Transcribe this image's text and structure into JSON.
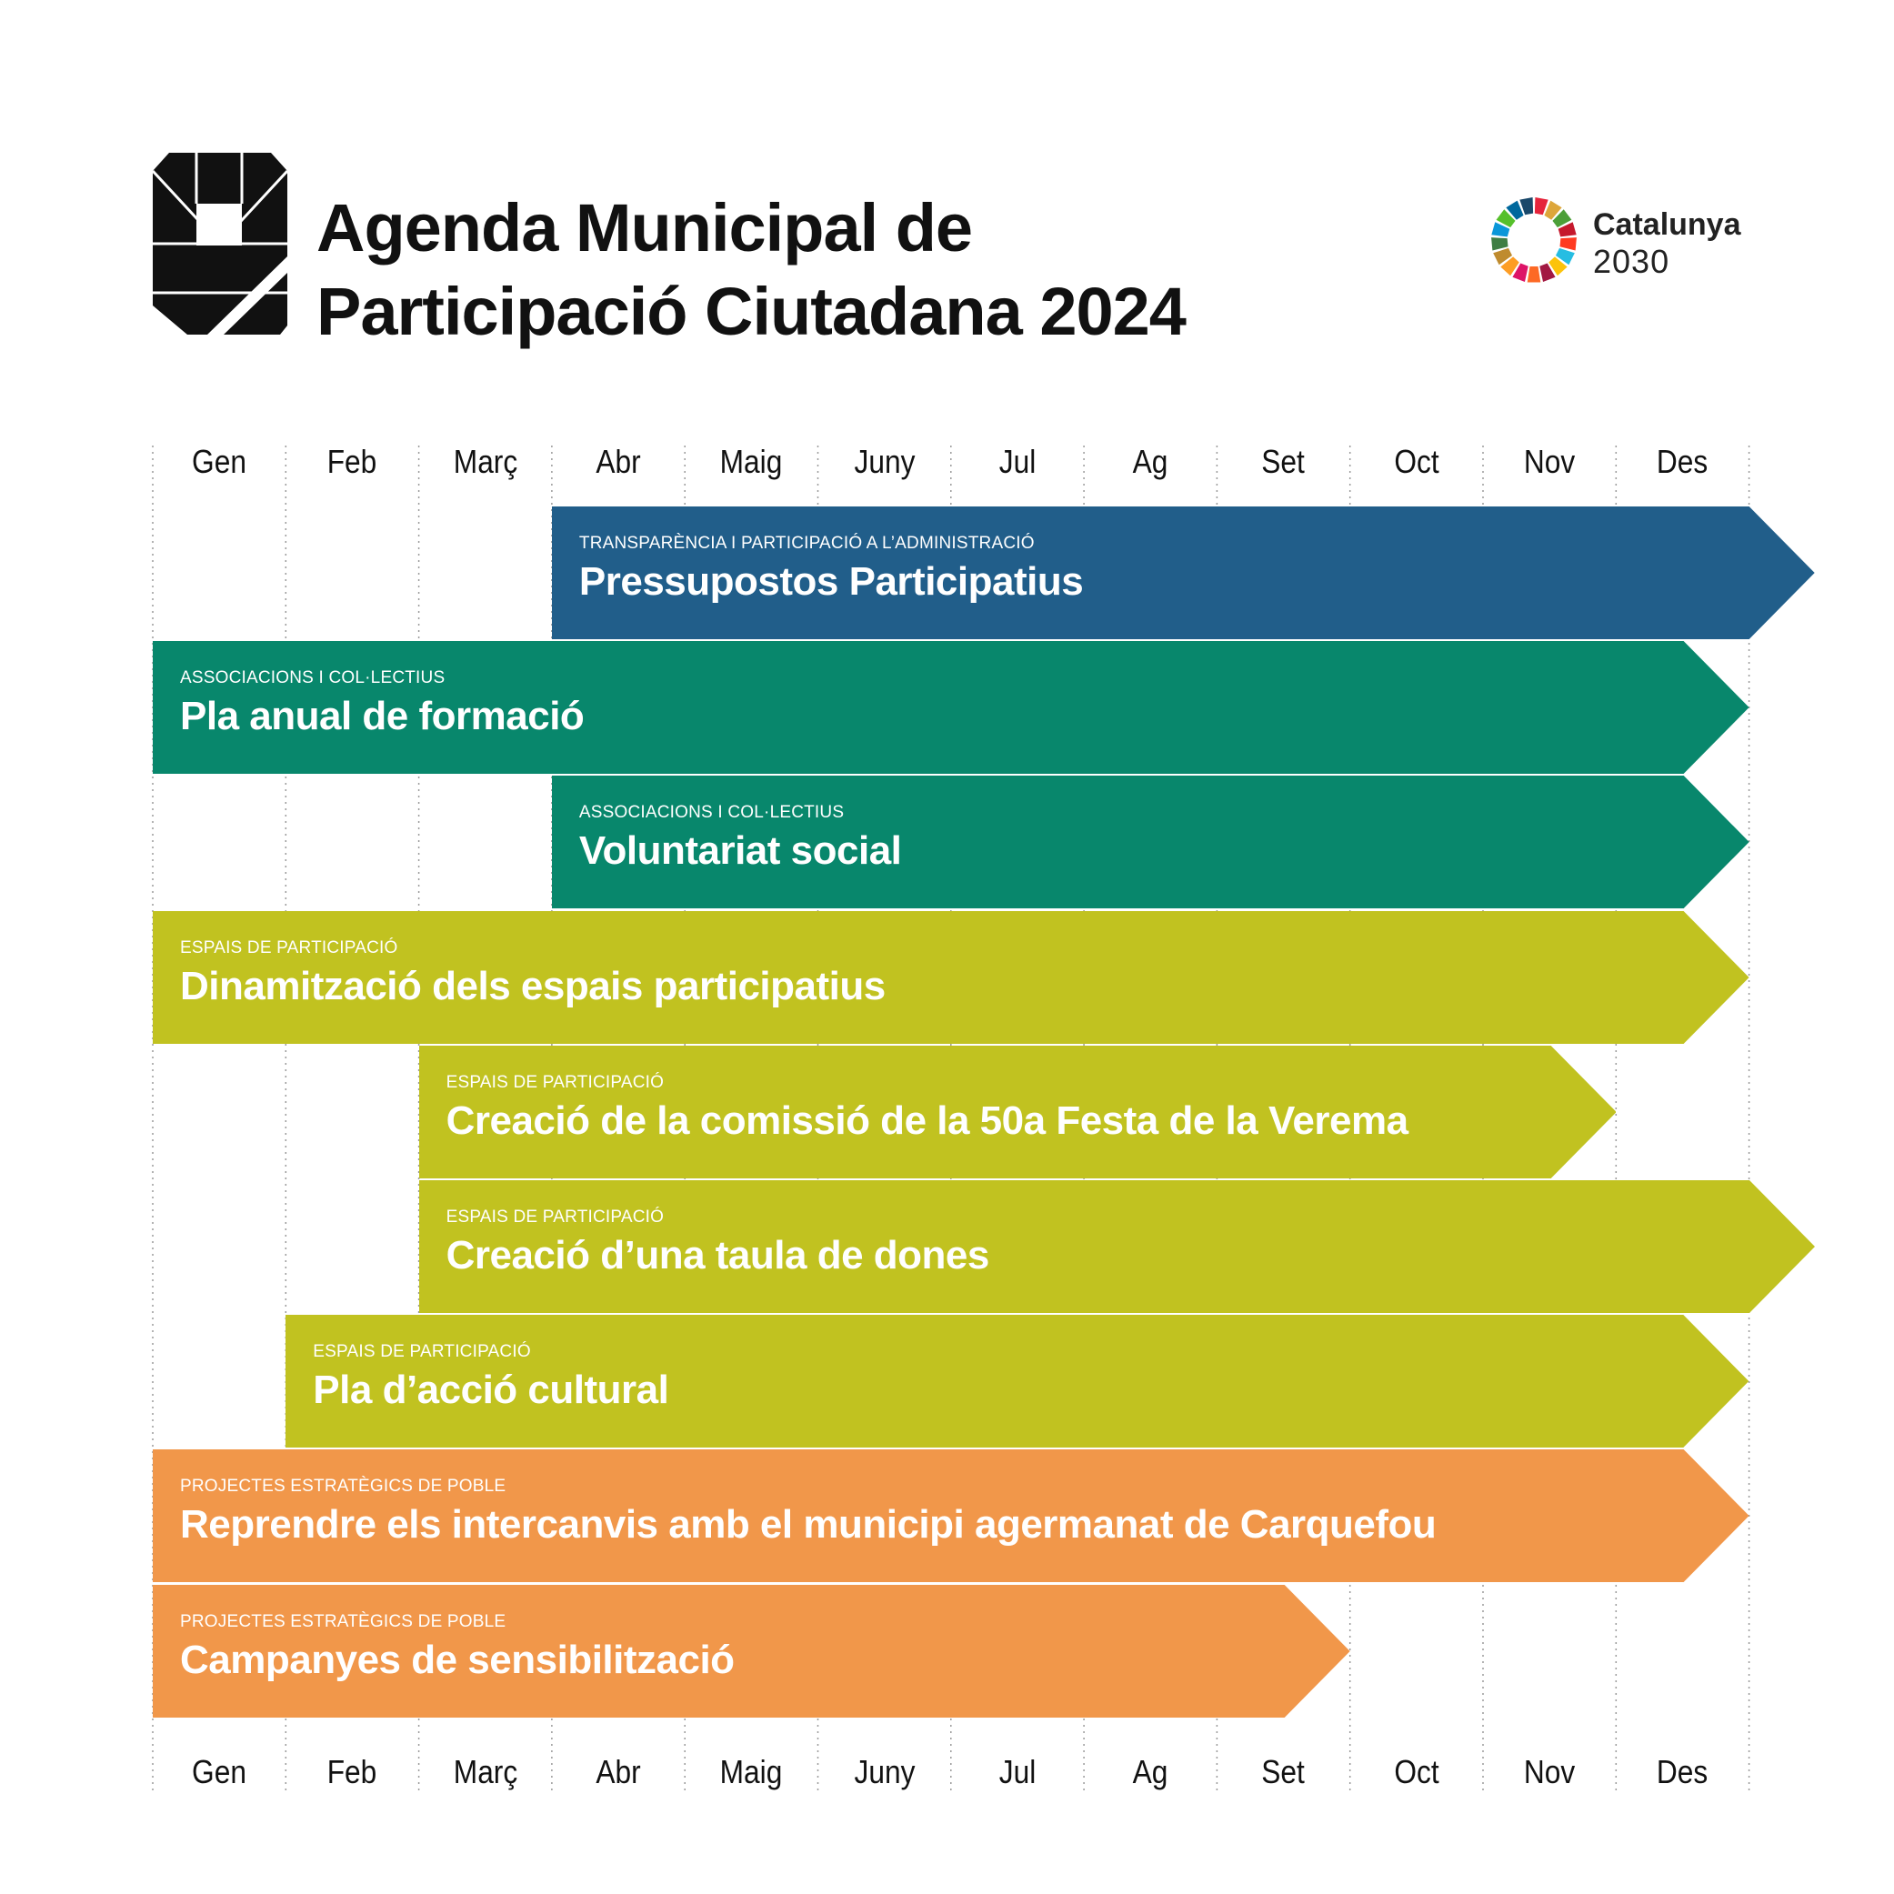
{
  "header": {
    "title_line1": "Agenda Municipal de",
    "title_line2": "Participació Ciutadana 2024"
  },
  "brand": {
    "name": "Catalunya",
    "year": "2030"
  },
  "colors": {
    "blue": "#215E8A",
    "teal": "#08876C",
    "olive": "#C1C220",
    "orange": "#F1974A",
    "grid_line": "#9a9a9a"
  },
  "months": [
    "Gen",
    "Feb",
    "Març",
    "Abr",
    "Maig",
    "Juny",
    "Jul",
    "Ag",
    "Set",
    "Oct",
    "Nov",
    "Des"
  ],
  "chart_data": {
    "type": "gantt",
    "axis": "months 2024",
    "tasks": [
      {
        "category": "TRANSPARÈNCIA I PARTICIPACIÓ A L’ADMINISTRACIÓ",
        "title": "Pressupostos Participatius",
        "start": "Abr",
        "end": "Des",
        "continues": true,
        "color": "blue"
      },
      {
        "category": "ASSOCIACIONS I COL·LECTIUS",
        "title": "Pla anual de formació",
        "start": "Gen",
        "end": "Des",
        "continues": false,
        "color": "teal"
      },
      {
        "category": "ASSOCIACIONS I COL·LECTIUS",
        "title": "Voluntariat social",
        "start": "Abr",
        "end": "Des",
        "continues": false,
        "color": "teal"
      },
      {
        "category": "ESPAIS DE PARTICIPACIÓ",
        "title": "Dinamització dels espais participatius",
        "start": "Gen",
        "end": "Des",
        "continues": false,
        "color": "olive"
      },
      {
        "category": "ESPAIS DE PARTICIPACIÓ",
        "title": "Creació de la comissió de la 50a Festa de la Verema",
        "start": "Març",
        "end": "Nov",
        "continues": false,
        "color": "olive"
      },
      {
        "category": "ESPAIS DE PARTICIPACIÓ",
        "title": "Creació d’una taula de dones",
        "start": "Març",
        "end": "Des",
        "continues": true,
        "color": "olive"
      },
      {
        "category": "ESPAIS DE PARTICIPACIÓ",
        "title": "Pla d’acció cultural",
        "start": "Feb",
        "end": "Des",
        "continues": false,
        "color": "olive"
      },
      {
        "category": "PROJECTES ESTRATÈGICS DE POBLE",
        "title": "Reprendre els intercanvis amb el municipi agermanat de Carquefou",
        "start": "Gen",
        "end": "Des",
        "continues": false,
        "color": "orange"
      },
      {
        "category": "PROJECTES ESTRATÈGICS DE POBLE",
        "title": "Campanyes de sensibilització",
        "start": "Gen",
        "end": "Set",
        "continues": false,
        "color": "orange"
      }
    ]
  }
}
